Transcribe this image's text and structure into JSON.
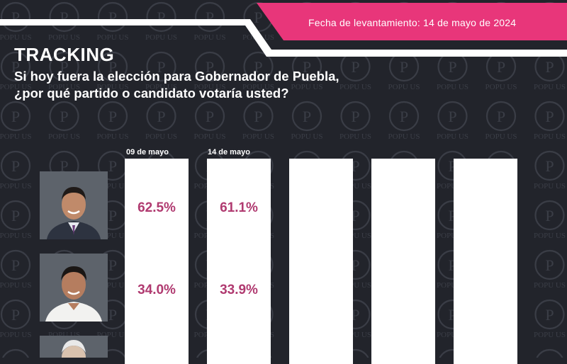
{
  "header": {
    "date_label": "Fecha de levantamiento: 14 de mayo de 2024",
    "accent_color": "#e8367a"
  },
  "title": {
    "tracking": "TRACKING",
    "question_line1": "Si hoy fuera la elección para Gobernador de Puebla,",
    "question_line2": "¿por qué partido o candidato votaría usted?"
  },
  "watermark": {
    "text": "POPU US"
  },
  "columns": [
    "09 de mayo",
    "14 de mayo",
    "",
    "",
    ""
  ],
  "candidates": [
    {
      "photo": "candidate-1-photo",
      "values": [
        "62.5%",
        "61.1%"
      ]
    },
    {
      "photo": "candidate-2-photo",
      "values": [
        "34.0%",
        "33.9%"
      ]
    },
    {
      "photo": "candidate-3-photo",
      "values": []
    }
  ]
}
